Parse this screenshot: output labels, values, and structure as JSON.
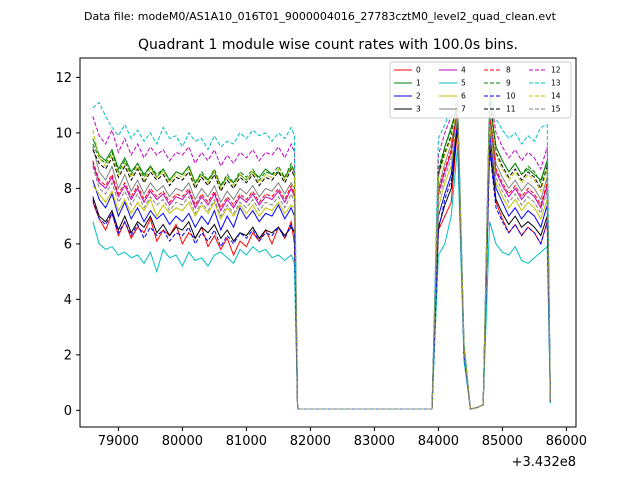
{
  "chart_data": {
    "type": "line",
    "suptitle": "Data file: modeM0/AS1A10_016T01_9000004016_27783cztM0_level2_quad_clean.evt",
    "title": "Quadrant 1 module wise count rates with 100.0s bins.",
    "xlabel": "",
    "ylabel": "",
    "x_offset_label": "+3.432e8",
    "xlim": [
      78400,
      86150
    ],
    "ylim": [
      -0.6,
      12.7
    ],
    "x_ticks": [
      79000,
      80000,
      81000,
      82000,
      83000,
      84000,
      85000,
      86000
    ],
    "y_ticks": [
      0,
      2,
      4,
      6,
      8,
      10,
      12
    ],
    "x": [
      78600,
      78700,
      78800,
      78900,
      79000,
      79100,
      79200,
      79300,
      79400,
      79500,
      79600,
      79700,
      79800,
      79900,
      80000,
      80100,
      80200,
      80300,
      80400,
      80500,
      80600,
      80700,
      80800,
      80900,
      81000,
      81100,
      81200,
      81300,
      81400,
      81500,
      81600,
      81700,
      81750,
      81800,
      81900,
      82000,
      83000,
      83900,
      84000,
      84100,
      84200,
      84300,
      84400,
      84500,
      84600,
      84700,
      84800,
      84900,
      85000,
      85100,
      85200,
      85300,
      85400,
      85500,
      85600,
      85700,
      85750
    ],
    "series": [
      {
        "name": "0",
        "color": "#ff0000",
        "style": "solid",
        "base": 6.5,
        "values": [
          7.5,
          6.9,
          6.5,
          7.1,
          6.3,
          6.8,
          6.2,
          6.6,
          6.4,
          6.9,
          6.1,
          6.5,
          6.3,
          6.7,
          6.0,
          6.4,
          6.2,
          6.6,
          5.9,
          6.3,
          5.8,
          6.2,
          5.6,
          6.1,
          5.9,
          6.4,
          6.1,
          6.5,
          6.0,
          6.6,
          6.2,
          6.8,
          6.0,
          0.05,
          0.05,
          0.05,
          0.05,
          0.05,
          6.5,
          7.0,
          7.5,
          10.2,
          2.0,
          0.05,
          0.1,
          0.2,
          9.5,
          7.5,
          6.9,
          6.4,
          6.7,
          6.3,
          6.6,
          6.4,
          6.0,
          6.8,
          0.3
        ]
      },
      {
        "name": "1",
        "color": "#008000",
        "style": "solid",
        "base": 8.8,
        "values": [
          9.8,
          9.2,
          9.0,
          9.4,
          8.7,
          9.1,
          8.6,
          8.9,
          8.5,
          8.8,
          8.4,
          8.7,
          8.3,
          8.6,
          8.5,
          8.8,
          8.2,
          8.5,
          8.3,
          8.6,
          8.1,
          8.4,
          8.2,
          8.5,
          8.3,
          8.6,
          8.4,
          8.7,
          8.5,
          8.6,
          8.4,
          8.8,
          8.6,
          0.05,
          0.05,
          0.05,
          0.05,
          0.05,
          8.5,
          9.5,
          10.2,
          11.0,
          2.3,
          0.05,
          0.1,
          0.2,
          11.2,
          9.5,
          9.0,
          8.6,
          8.9,
          8.5,
          8.7,
          8.5,
          8.3,
          9.0,
          0.35
        ]
      },
      {
        "name": "2",
        "color": "#0000ff",
        "style": "solid",
        "base": 7.0,
        "values": [
          8.3,
          7.6,
          7.3,
          7.8,
          7.0,
          7.5,
          6.9,
          7.3,
          6.8,
          7.2,
          6.9,
          7.1,
          6.7,
          7.0,
          6.8,
          7.1,
          6.6,
          7.0,
          6.7,
          7.2,
          6.5,
          7.0,
          6.6,
          7.3,
          6.9,
          7.2,
          6.8,
          7.1,
          7.0,
          7.4,
          6.9,
          7.3,
          7.0,
          0.05,
          0.05,
          0.05,
          0.05,
          0.05,
          7.0,
          7.8,
          8.5,
          10.5,
          2.1,
          0.05,
          0.1,
          0.2,
          10.0,
          8.0,
          7.5,
          7.0,
          7.3,
          6.9,
          7.2,
          7.0,
          6.6,
          7.4,
          0.3
        ]
      },
      {
        "name": "3",
        "color": "#000000",
        "style": "solid",
        "base": 6.6,
        "values": [
          7.7,
          7.0,
          6.8,
          7.2,
          6.5,
          7.0,
          6.4,
          6.8,
          6.6,
          7.0,
          6.4,
          6.7,
          6.3,
          6.6,
          6.5,
          6.8,
          6.2,
          6.6,
          6.4,
          6.7,
          6.2,
          6.5,
          6.1,
          6.4,
          6.3,
          6.6,
          6.2,
          6.5,
          6.4,
          6.6,
          6.3,
          6.6,
          6.4,
          0.05,
          0.05,
          0.05,
          0.05,
          0.05,
          6.6,
          7.4,
          8.0,
          10.3,
          2.0,
          0.05,
          0.1,
          0.2,
          9.6,
          7.6,
          7.1,
          6.7,
          7.0,
          6.6,
          6.8,
          6.6,
          6.3,
          7.0,
          0.3
        ]
      },
      {
        "name": "4",
        "color": "#c000c0",
        "style": "solid",
        "base": 7.8,
        "values": [
          8.9,
          8.2,
          8.0,
          8.4,
          7.7,
          8.1,
          7.6,
          8.0,
          7.5,
          7.9,
          7.6,
          7.8,
          7.4,
          7.7,
          7.6,
          7.9,
          7.3,
          7.7,
          7.4,
          7.8,
          7.2,
          7.6,
          7.3,
          7.7,
          7.5,
          7.8,
          7.4,
          7.7,
          7.6,
          7.9,
          7.5,
          8.0,
          7.7,
          0.05,
          0.05,
          0.05,
          0.05,
          0.05,
          7.8,
          8.6,
          9.3,
          10.8,
          2.2,
          0.05,
          0.1,
          0.2,
          10.6,
          8.6,
          8.1,
          7.7,
          8.0,
          7.6,
          7.9,
          7.7,
          7.3,
          8.1,
          0.3
        ]
      },
      {
        "name": "5",
        "color": "#00c0c0",
        "style": "solid",
        "base": 5.6,
        "values": [
          6.8,
          6.0,
          5.8,
          5.9,
          5.6,
          5.7,
          5.5,
          5.6,
          5.3,
          5.7,
          5.0,
          5.8,
          5.5,
          5.6,
          5.2,
          5.7,
          5.4,
          5.5,
          5.2,
          5.6,
          5.7,
          5.5,
          5.3,
          5.8,
          5.6,
          5.9,
          5.7,
          5.8,
          5.5,
          5.6,
          5.4,
          5.6,
          5.3,
          0.05,
          0.05,
          0.05,
          0.05,
          0.05,
          5.6,
          6.0,
          7.0,
          9.5,
          1.8,
          0.05,
          0.1,
          0.2,
          6.8,
          6.0,
          5.7,
          5.6,
          5.9,
          5.4,
          5.3,
          5.5,
          5.7,
          5.9,
          0.25
        ]
      },
      {
        "name": "6",
        "color": "#c0c000",
        "style": "solid",
        "base": 7.3,
        "values": [
          8.1,
          7.8,
          7.5,
          7.9,
          7.2,
          7.6,
          7.1,
          7.5,
          7.2,
          7.6,
          7.0,
          7.4,
          7.1,
          7.3,
          7.2,
          7.5,
          7.0,
          7.4,
          7.1,
          7.5,
          6.9,
          7.3,
          7.0,
          7.4,
          7.1,
          7.4,
          7.0,
          7.3,
          7.2,
          7.5,
          7.1,
          7.4,
          7.3,
          0.05,
          0.05,
          0.05,
          0.05,
          0.05,
          7.3,
          8.2,
          8.8,
          10.6,
          2.1,
          0.05,
          0.1,
          0.2,
          10.3,
          8.2,
          7.7,
          7.3,
          7.6,
          7.2,
          7.5,
          7.3,
          6.9,
          7.6,
          0.3
        ]
      },
      {
        "name": "7",
        "color": "#808080",
        "style": "solid",
        "base": 8.0,
        "values": [
          9.5,
          8.6,
          8.3,
          8.8,
          8.0,
          8.5,
          7.9,
          8.3,
          7.8,
          8.2,
          7.9,
          8.1,
          7.7,
          8.0,
          7.9,
          8.2,
          7.6,
          8.0,
          7.7,
          8.1,
          7.5,
          7.9,
          7.6,
          8.0,
          7.8,
          8.1,
          7.7,
          8.0,
          7.9,
          8.2,
          7.8,
          8.2,
          8.0,
          0.05,
          0.05,
          0.05,
          0.05,
          0.05,
          8.0,
          8.9,
          9.6,
          10.9,
          2.2,
          0.05,
          0.1,
          0.2,
          10.8,
          8.9,
          8.4,
          8.0,
          8.3,
          7.9,
          8.2,
          8.0,
          7.6,
          8.4,
          0.35
        ]
      },
      {
        "name": "8",
        "color": "#ff0000",
        "style": "dashed",
        "base": 7.9,
        "values": [
          9.0,
          8.3,
          8.1,
          8.5,
          7.8,
          8.2,
          7.7,
          8.1,
          7.6,
          8.0,
          7.7,
          7.9,
          7.5,
          7.8,
          7.7,
          8.0,
          7.4,
          7.8,
          7.5,
          7.9,
          7.3,
          7.7,
          7.4,
          7.8,
          7.6,
          7.9,
          7.5,
          7.8,
          7.7,
          8.0,
          7.6,
          8.1,
          7.8,
          0.05,
          0.05,
          0.05,
          0.05,
          0.05,
          7.9,
          8.7,
          9.4,
          10.9,
          2.2,
          0.05,
          0.1,
          0.2,
          10.7,
          8.7,
          8.2,
          7.8,
          8.1,
          7.7,
          8.0,
          7.8,
          7.4,
          8.2,
          0.3
        ]
      },
      {
        "name": "9",
        "color": "#008000",
        "style": "dashed",
        "base": 8.7,
        "values": [
          9.6,
          9.1,
          8.9,
          9.3,
          8.6,
          9.0,
          8.5,
          8.9,
          8.4,
          8.8,
          8.5,
          8.7,
          8.3,
          8.6,
          8.5,
          8.8,
          8.2,
          8.6,
          8.3,
          8.7,
          8.1,
          8.5,
          8.2,
          8.6,
          8.4,
          8.7,
          8.3,
          8.6,
          8.5,
          8.8,
          8.4,
          8.9,
          8.6,
          0.05,
          0.05,
          0.05,
          0.05,
          0.05,
          8.7,
          9.5,
          10.1,
          11.1,
          2.3,
          0.05,
          0.1,
          0.2,
          11.3,
          9.5,
          9.0,
          8.6,
          8.9,
          8.5,
          8.8,
          8.6,
          8.2,
          9.0,
          0.35
        ]
      },
      {
        "name": "10",
        "color": "#0000ff",
        "style": "dashed",
        "base": 6.5,
        "values": [
          7.6,
          6.9,
          6.7,
          7.1,
          6.4,
          6.8,
          6.3,
          6.7,
          6.2,
          6.6,
          6.3,
          6.5,
          6.1,
          6.4,
          6.3,
          6.6,
          6.0,
          6.4,
          6.1,
          6.5,
          5.9,
          6.3,
          6.0,
          6.4,
          6.2,
          6.5,
          6.1,
          6.4,
          6.3,
          6.6,
          6.2,
          6.7,
          6.4,
          0.05,
          0.05,
          0.05,
          0.05,
          0.05,
          6.5,
          7.6,
          8.3,
          10.4,
          2.0,
          0.05,
          0.1,
          0.2,
          9.4,
          7.3,
          6.8,
          6.4,
          6.7,
          6.3,
          6.6,
          6.4,
          6.0,
          6.8,
          0.3
        ]
      },
      {
        "name": "11",
        "color": "#000000",
        "style": "dashed",
        "base": 8.5,
        "values": [
          9.4,
          8.9,
          8.7,
          9.1,
          8.4,
          8.8,
          8.3,
          8.7,
          8.2,
          8.6,
          8.3,
          8.5,
          8.1,
          8.4,
          8.3,
          8.6,
          8.0,
          8.4,
          8.1,
          8.5,
          7.9,
          8.3,
          8.0,
          8.4,
          8.2,
          8.5,
          8.1,
          8.4,
          8.3,
          8.6,
          8.2,
          8.7,
          8.4,
          0.05,
          0.05,
          0.05,
          0.05,
          0.05,
          8.5,
          9.3,
          9.9,
          11.0,
          2.3,
          0.05,
          0.1,
          0.2,
          11.1,
          9.3,
          8.8,
          8.4,
          8.7,
          8.3,
          8.6,
          8.4,
          8.0,
          8.8,
          0.35
        ]
      },
      {
        "name": "12",
        "color": "#c000c0",
        "style": "dashed",
        "base": 9.2,
        "values": [
          10.6,
          9.9,
          9.6,
          10.1,
          9.3,
          9.8,
          9.2,
          9.6,
          9.1,
          9.5,
          9.2,
          9.4,
          9.0,
          9.3,
          9.2,
          9.5,
          8.9,
          9.3,
          9.0,
          9.4,
          8.8,
          9.2,
          8.9,
          9.3,
          9.1,
          9.4,
          9.0,
          9.3,
          9.2,
          9.5,
          9.1,
          9.6,
          9.3,
          0.05,
          0.05,
          0.05,
          0.05,
          0.05,
          9.2,
          10.0,
          10.6,
          11.2,
          2.4,
          0.05,
          0.1,
          0.2,
          11.5,
          10.0,
          9.5,
          9.1,
          9.4,
          9.0,
          9.3,
          9.1,
          8.7,
          9.5,
          0.4
        ]
      },
      {
        "name": "13",
        "color": "#00c0c0",
        "style": "dashed",
        "base": 9.8,
        "values": [
          10.9,
          11.1,
          10.6,
          10.2,
          9.9,
          10.3,
          9.8,
          10.1,
          9.7,
          10.0,
          9.6,
          10.2,
          9.8,
          9.9,
          9.5,
          10.0,
          9.7,
          9.8,
          9.4,
          9.9,
          9.5,
          9.7,
          9.6,
          10.0,
          9.8,
          10.1,
          9.9,
          10.0,
          9.7,
          10.0,
          9.8,
          10.2,
          9.9,
          0.05,
          0.05,
          0.05,
          0.05,
          0.05,
          9.8,
          10.3,
          10.9,
          11.4,
          2.5,
          0.05,
          0.1,
          0.2,
          11.6,
          10.5,
          10.1,
          9.8,
          10.0,
          9.6,
          9.9,
          9.7,
          10.2,
          10.3,
          0.4
        ]
      },
      {
        "name": "14",
        "color": "#c0c000",
        "style": "dashed",
        "base": 8.4,
        "values": [
          10.1,
          9.1,
          8.8,
          9.2,
          8.5,
          8.9,
          8.4,
          8.8,
          8.3,
          8.7,
          8.4,
          8.6,
          8.2,
          8.5,
          8.4,
          8.7,
          8.1,
          8.5,
          8.2,
          8.6,
          8.0,
          8.4,
          8.1,
          8.5,
          8.3,
          8.6,
          8.2,
          8.5,
          8.4,
          8.7,
          8.3,
          8.8,
          8.5,
          0.05,
          0.05,
          0.05,
          0.05,
          0.05,
          8.4,
          9.2,
          9.8,
          11.0,
          2.3,
          0.05,
          0.1,
          0.2,
          11.0,
          9.2,
          8.7,
          8.3,
          8.6,
          8.2,
          8.5,
          8.3,
          7.9,
          8.7,
          0.35
        ]
      },
      {
        "name": "15",
        "color": "#808080",
        "style": "dashed",
        "base": 7.6,
        "values": [
          8.8,
          8.0,
          7.8,
          8.2,
          7.5,
          7.9,
          7.4,
          7.8,
          7.3,
          7.7,
          7.4,
          7.6,
          7.2,
          7.5,
          7.4,
          7.7,
          7.1,
          7.5,
          7.2,
          7.6,
          7.0,
          7.4,
          7.1,
          7.5,
          7.3,
          7.6,
          7.2,
          7.5,
          7.4,
          7.7,
          7.3,
          7.8,
          7.5,
          0.05,
          0.05,
          0.05,
          0.05,
          0.05,
          7.6,
          8.4,
          9.1,
          10.7,
          2.1,
          0.05,
          0.1,
          0.2,
          10.5,
          8.4,
          7.9,
          7.5,
          7.8,
          7.4,
          7.7,
          7.5,
          7.1,
          7.9,
          0.3
        ]
      }
    ],
    "legend_location": "top-right",
    "legend_columns": 4,
    "grid": false
  }
}
